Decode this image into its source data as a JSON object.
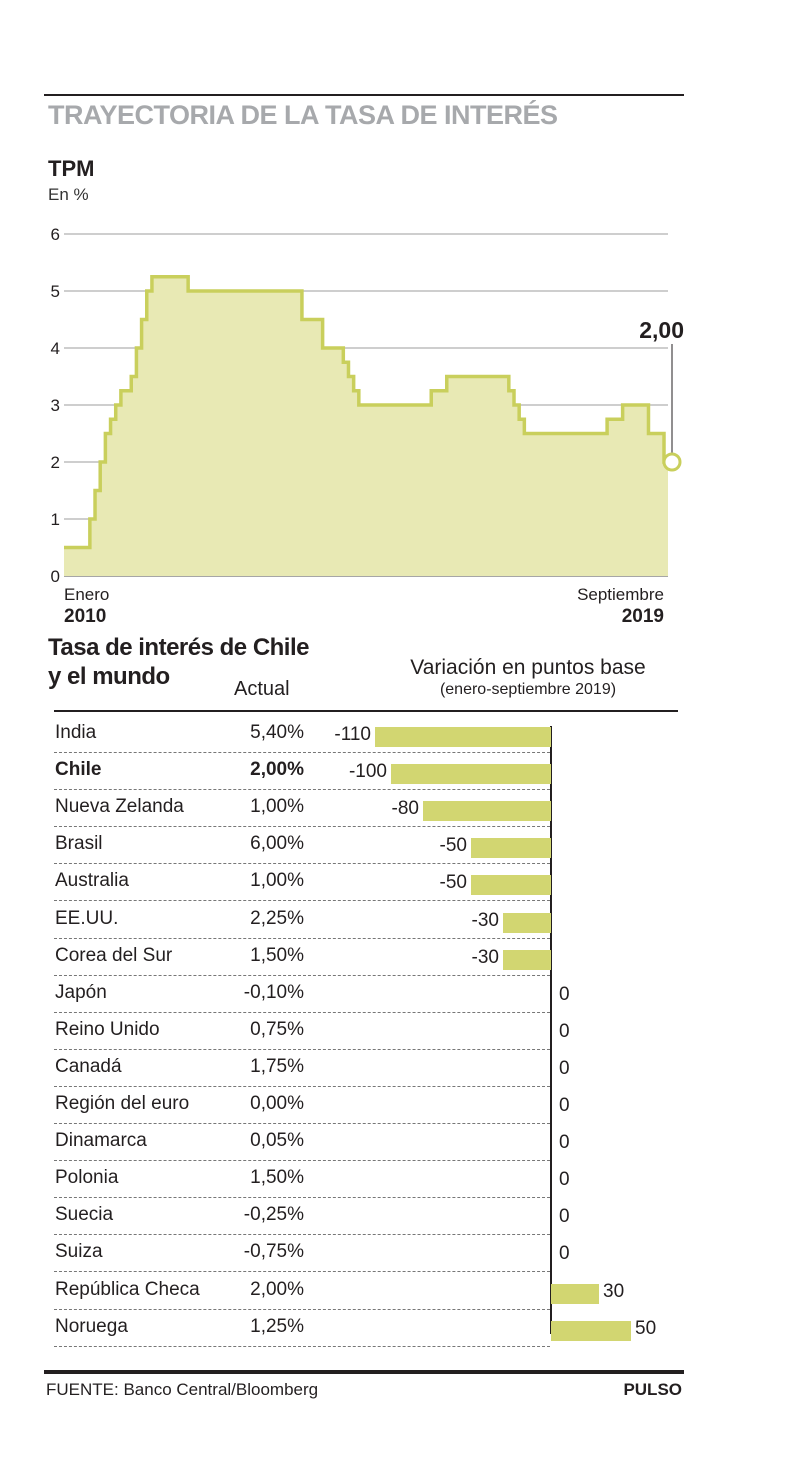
{
  "header": {
    "title": "TRAYECTORIA DE LA TASA DE INTERÉS"
  },
  "line_chart": {
    "title": "TPM",
    "unit": "En %",
    "x_start_month": "Enero",
    "x_start_year": "2010",
    "x_end_month": "Septiembre",
    "x_end_year": "2019",
    "last_value_label": "2,00"
  },
  "table": {
    "title_line1": "Tasa de interés de Chile",
    "title_line2": "y el mundo",
    "col_actual": "Actual",
    "col_variation": "Variación en puntos base",
    "col_variation_sub": "(enero-septiembre 2019)"
  },
  "chart_data": [
    {
      "type": "line",
      "title": "TPM",
      "ylabel": "En %",
      "ylim": [
        0,
        6
      ],
      "yticks": [
        0,
        1,
        2,
        3,
        4,
        5,
        6
      ],
      "grid": true,
      "x": [
        "2010-01",
        "2010-06",
        "2010-07",
        "2010-08",
        "2010-09",
        "2010-10",
        "2010-11",
        "2010-12",
        "2011-01",
        "2011-02",
        "2011-03",
        "2011-04",
        "2011-05",
        "2011-06",
        "2011-07",
        "2012-01",
        "2013-01",
        "2013-11",
        "2014-01",
        "2014-03",
        "2014-04",
        "2014-07",
        "2014-08",
        "2014-09",
        "2014-10",
        "2015-10",
        "2015-12",
        "2016-03",
        "2017-01",
        "2017-03",
        "2017-04",
        "2017-05",
        "2017-06",
        "2018-09",
        "2018-10",
        "2019-01",
        "2019-06",
        "2019-07",
        "2019-09"
      ],
      "values": [
        0.5,
        1.0,
        1.5,
        2.0,
        2.5,
        2.75,
        3.0,
        3.25,
        3.25,
        3.5,
        4.0,
        4.5,
        5.0,
        5.25,
        5.25,
        5.0,
        5.0,
        4.5,
        4.5,
        4.0,
        4.0,
        3.75,
        3.5,
        3.25,
        3.0,
        3.0,
        3.25,
        3.5,
        3.5,
        3.25,
        3.0,
        2.75,
        2.5,
        2.5,
        2.75,
        3.0,
        2.5,
        2.5,
        2.0
      ],
      "x_labels": [
        "Enero 2010",
        "Septiembre 2019"
      ],
      "last_value": 2.0,
      "last_value_label": "2,00"
    },
    {
      "type": "bar",
      "title": "Variación en puntos base (enero-septiembre 2019)",
      "categories": [
        "India",
        "Chile",
        "Nueva Zelanda",
        "Brasil",
        "Australia",
        "EE.UU.",
        "Corea del Sur",
        "Japón",
        "Reino Unido",
        "Canadá",
        "Región del euro",
        "Dinamarca",
        "Polonia",
        "Suecia",
        "Suiza",
        "República Checa",
        "Noruega"
      ],
      "actual": [
        "5,40%",
        "2,00%",
        "1,00%",
        "6,00%",
        "1,00%",
        "2,25%",
        "1,50%",
        "-0,10%",
        "0,75%",
        "1,75%",
        "0,00%",
        "0,05%",
        "1,50%",
        "-0,25%",
        "-0,75%",
        "2,00%",
        "1,25%"
      ],
      "values": [
        -110,
        -100,
        -80,
        -50,
        -50,
        -30,
        -30,
        0,
        0,
        0,
        0,
        0,
        0,
        0,
        0,
        30,
        50
      ],
      "value_labels": [
        "-110",
        "-100",
        "-80",
        "-50",
        "-50",
        "-30",
        "-30",
        "0",
        "0",
        "0",
        "0",
        "0",
        "0",
        "0",
        "0",
        "30",
        "50"
      ],
      "highlight": "Chile",
      "bar_color": "#d2d671"
    }
  ],
  "footer": {
    "source": "FUENTE: Banco Central/Bloomberg",
    "brand": "PULSO"
  },
  "colors": {
    "accent_fill": "#e8e9b4",
    "accent_line": "#c9cf5c",
    "bar": "#d2d671",
    "title_gray": "#a7a9ac"
  }
}
